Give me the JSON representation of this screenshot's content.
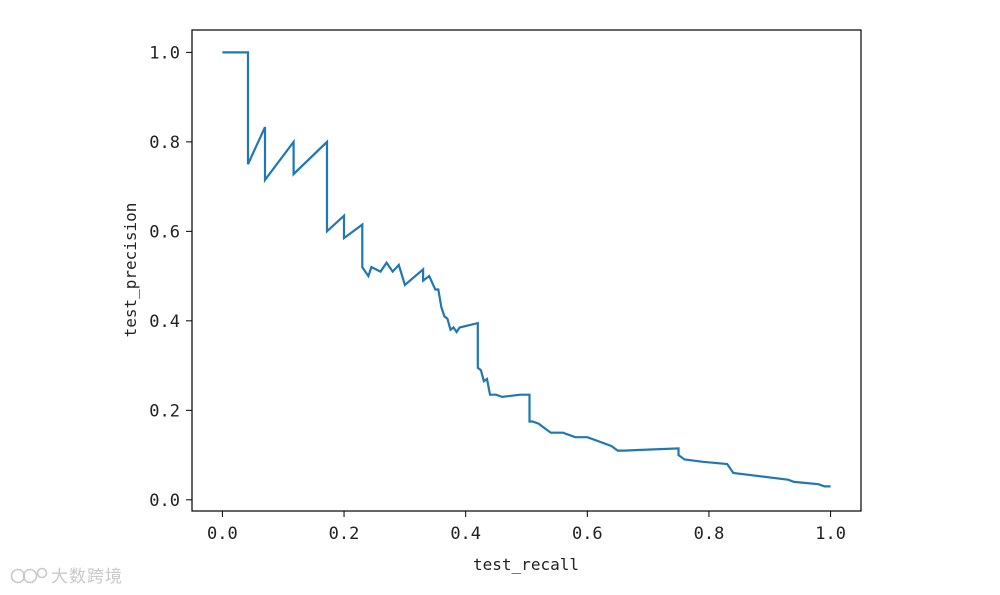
{
  "chart_data": {
    "type": "line",
    "xlabel": "test_recall",
    "ylabel": "test_precision",
    "xlim": [
      -0.05,
      1.05
    ],
    "ylim": [
      -0.025,
      1.05
    ],
    "xticks": [
      0.0,
      0.2,
      0.4,
      0.6,
      0.8,
      1.0
    ],
    "xtick_labels": [
      "0.0",
      "0.2",
      "0.4",
      "0.6",
      "0.8",
      "1.0"
    ],
    "yticks": [
      0.0,
      0.2,
      0.4,
      0.6,
      0.8,
      1.0
    ],
    "ytick_labels": [
      "0.0",
      "0.2",
      "0.4",
      "0.6",
      "0.8",
      "1.0"
    ],
    "grid": false,
    "legend": "none",
    "line_color": "#1f77b4",
    "series": [
      {
        "x": [
          0.0,
          0.042,
          0.042,
          0.07,
          0.07,
          0.117,
          0.117,
          0.172,
          0.172,
          0.2,
          0.2,
          0.23,
          0.23,
          0.24,
          0.245,
          0.26,
          0.27,
          0.28,
          0.29,
          0.3,
          0.3,
          0.33,
          0.33,
          0.34,
          0.35,
          0.355,
          0.36,
          0.365,
          0.37,
          0.375,
          0.38,
          0.385,
          0.39,
          0.42,
          0.42,
          0.425,
          0.43,
          0.435,
          0.44,
          0.45,
          0.46,
          0.49,
          0.505,
          0.505,
          0.51,
          0.52,
          0.53,
          0.54,
          0.56,
          0.58,
          0.6,
          0.62,
          0.64,
          0.65,
          0.66,
          0.75,
          0.75,
          0.76,
          0.79,
          0.83,
          0.84,
          0.87,
          0.93,
          0.94,
          0.98,
          0.99,
          1.0
        ],
        "y": [
          1.0,
          1.0,
          0.75,
          0.833,
          0.715,
          0.8,
          0.728,
          0.8,
          0.6,
          0.635,
          0.585,
          0.615,
          0.52,
          0.5,
          0.52,
          0.51,
          0.53,
          0.51,
          0.525,
          0.48,
          0.48,
          0.515,
          0.49,
          0.5,
          0.47,
          0.47,
          0.43,
          0.41,
          0.405,
          0.38,
          0.385,
          0.375,
          0.385,
          0.395,
          0.295,
          0.29,
          0.265,
          0.27,
          0.235,
          0.235,
          0.23,
          0.235,
          0.235,
          0.175,
          0.175,
          0.17,
          0.16,
          0.15,
          0.15,
          0.14,
          0.14,
          0.13,
          0.12,
          0.11,
          0.11,
          0.115,
          0.1,
          0.09,
          0.085,
          0.08,
          0.06,
          0.055,
          0.045,
          0.04,
          0.035,
          0.03,
          0.03
        ]
      }
    ]
  },
  "watermark": {
    "text": "大数跨境"
  }
}
